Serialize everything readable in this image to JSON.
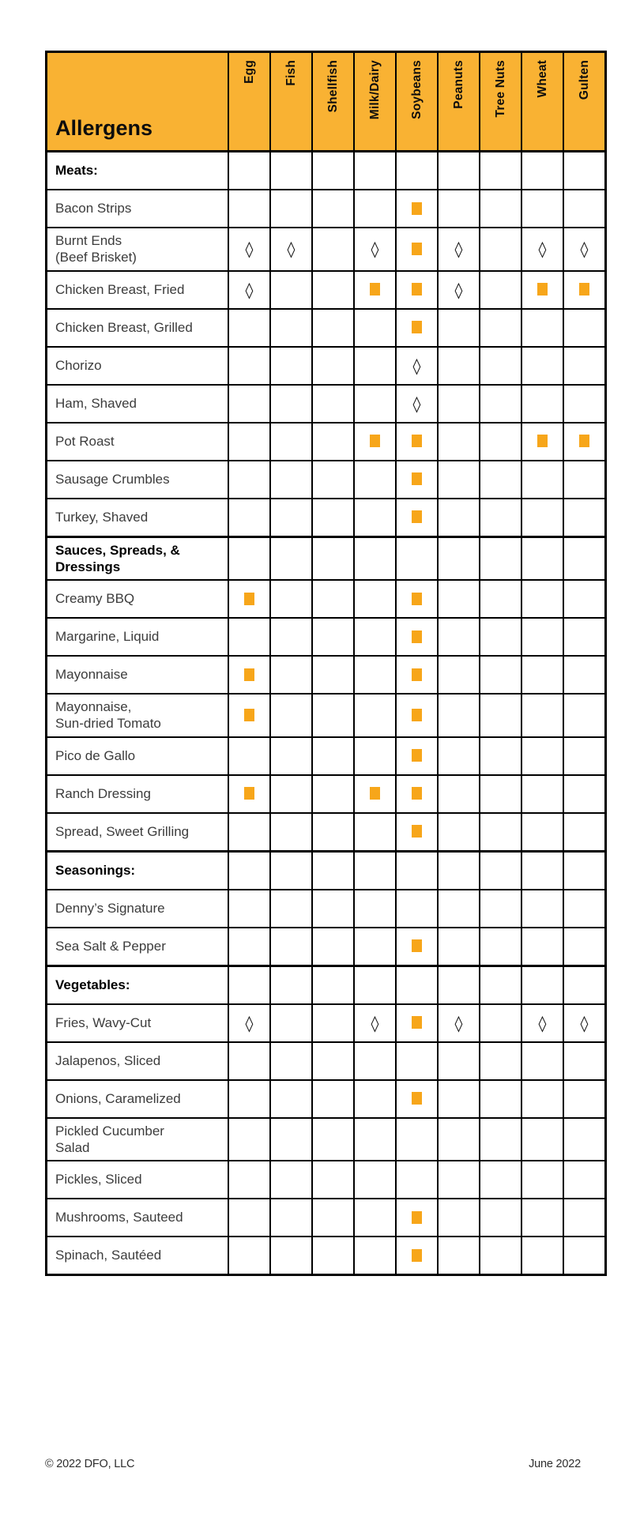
{
  "colors": {
    "header_bg": "#F9B233",
    "square": "#F7A61A",
    "border": "#000000"
  },
  "table": {
    "corner_label": "Allergens",
    "columns": [
      "Egg",
      "Fish",
      "Shellfish",
      "Milk/Dairy",
      "Soybeans",
      "Peanuts",
      "Tree Nuts",
      "Wheat",
      "Gulten"
    ],
    "marker_meanings": {
      "square": "contains-marker",
      "diamond": "may-contain-marker"
    },
    "rows": [
      {
        "type": "section",
        "label": "Meats:"
      },
      {
        "type": "item",
        "label": "Bacon Strips",
        "cells": [
          "",
          "",
          "",
          "",
          "square",
          "",
          "",
          "",
          ""
        ]
      },
      {
        "type": "item",
        "label": "Burnt Ends\n(Beef Brisket)",
        "cells": [
          "diamond",
          "diamond",
          "",
          "diamond",
          "square",
          "diamond",
          "",
          "diamond",
          "diamond"
        ]
      },
      {
        "type": "item",
        "label": "Chicken Breast, Fried",
        "cells": [
          "diamond",
          "",
          "",
          "square",
          "square",
          "diamond",
          "",
          "square",
          "square"
        ]
      },
      {
        "type": "item",
        "label": "Chicken Breast, Grilled",
        "cells": [
          "",
          "",
          "",
          "",
          "square",
          "",
          "",
          "",
          ""
        ]
      },
      {
        "type": "item",
        "label": "Chorizo",
        "cells": [
          "",
          "",
          "",
          "",
          "diamond",
          "",
          "",
          "",
          ""
        ]
      },
      {
        "type": "item",
        "label": "Ham, Shaved",
        "cells": [
          "",
          "",
          "",
          "",
          "diamond",
          "",
          "",
          "",
          ""
        ]
      },
      {
        "type": "item",
        "label": "Pot Roast",
        "cells": [
          "",
          "",
          "",
          "square",
          "square",
          "",
          "",
          "square",
          "square"
        ]
      },
      {
        "type": "item",
        "label": "Sausage Crumbles",
        "cells": [
          "",
          "",
          "",
          "",
          "square",
          "",
          "",
          "",
          ""
        ]
      },
      {
        "type": "item",
        "label": "Turkey, Shaved",
        "cells": [
          "",
          "",
          "",
          "",
          "square",
          "",
          "",
          "",
          ""
        ]
      },
      {
        "type": "section",
        "label": "Sauces, Spreads, &\nDressings"
      },
      {
        "type": "item",
        "label": "Creamy BBQ",
        "cells": [
          "square",
          "",
          "",
          "",
          "square",
          "",
          "",
          "",
          ""
        ]
      },
      {
        "type": "item",
        "label": "Margarine, Liquid",
        "cells": [
          "",
          "",
          "",
          "",
          "square",
          "",
          "",
          "",
          ""
        ]
      },
      {
        "type": "item",
        "label": "Mayonnaise",
        "cells": [
          "square",
          "",
          "",
          "",
          "square",
          "",
          "",
          "",
          ""
        ]
      },
      {
        "type": "item",
        "label": "Mayonnaise,\nSun-dried Tomato",
        "cells": [
          "square",
          "",
          "",
          "",
          "square",
          "",
          "",
          "",
          ""
        ]
      },
      {
        "type": "item",
        "label": "Pico de Gallo",
        "cells": [
          "",
          "",
          "",
          "",
          "square",
          "",
          "",
          "",
          ""
        ]
      },
      {
        "type": "item",
        "label": "Ranch Dressing",
        "cells": [
          "square",
          "",
          "",
          "square",
          "square",
          "",
          "",
          "",
          ""
        ]
      },
      {
        "type": "item",
        "label": "Spread, Sweet Grilling",
        "cells": [
          "",
          "",
          "",
          "",
          "square",
          "",
          "",
          "",
          ""
        ]
      },
      {
        "type": "section",
        "label": "Seasonings:"
      },
      {
        "type": "item",
        "label": "Denny’s Signature",
        "cells": [
          "",
          "",
          "",
          "",
          "",
          "",
          "",
          "",
          ""
        ]
      },
      {
        "type": "item",
        "label": "Sea Salt & Pepper",
        "cells": [
          "",
          "",
          "",
          "",
          "square",
          "",
          "",
          "",
          ""
        ]
      },
      {
        "type": "section",
        "label": "Vegetables:"
      },
      {
        "type": "item",
        "label": "Fries, Wavy-Cut",
        "cells": [
          "diamond",
          "",
          "",
          "diamond",
          "square",
          "diamond",
          "",
          "diamond",
          "diamond"
        ]
      },
      {
        "type": "item",
        "label": "Jalapenos, Sliced",
        "cells": [
          "",
          "",
          "",
          "",
          "",
          "",
          "",
          "",
          ""
        ]
      },
      {
        "type": "item",
        "label": "Onions, Caramelized",
        "cells": [
          "",
          "",
          "",
          "",
          "square",
          "",
          "",
          "",
          ""
        ]
      },
      {
        "type": "item",
        "label": "Pickled Cucumber\nSalad",
        "cells": [
          "",
          "",
          "",
          "",
          "",
          "",
          "",
          "",
          ""
        ]
      },
      {
        "type": "item",
        "label": "Pickles, Sliced",
        "cells": [
          "",
          "",
          "",
          "",
          "",
          "",
          "",
          "",
          ""
        ]
      },
      {
        "type": "item",
        "label": "Mushrooms, Sauteed",
        "cells": [
          "",
          "",
          "",
          "",
          "square",
          "",
          "",
          "",
          ""
        ]
      },
      {
        "type": "item",
        "label": "Spinach, Sautéed",
        "cells": [
          "",
          "",
          "",
          "",
          "square",
          "",
          "",
          "",
          ""
        ]
      }
    ]
  },
  "footer": {
    "copyright": "© 2022 DFO, LLC",
    "date": "June 2022"
  }
}
